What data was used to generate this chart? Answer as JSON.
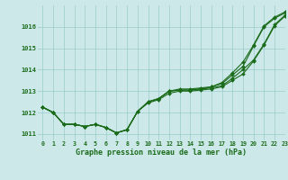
{
  "xlabel": "Graphe pression niveau de la mer (hPa)",
  "xlim": [
    -0.5,
    23
  ],
  "ylim": [
    1010.7,
    1017.0
  ],
  "yticks": [
    1011,
    1012,
    1013,
    1014,
    1015,
    1016
  ],
  "xticks": [
    0,
    1,
    2,
    3,
    4,
    5,
    6,
    7,
    8,
    9,
    10,
    11,
    12,
    13,
    14,
    15,
    16,
    17,
    18,
    19,
    20,
    21,
    22,
    23
  ],
  "bg_color": "#cce8e8",
  "line_color": "#1a6b1a",
  "grid_color": "#99cccc",
  "lines": [
    {
      "x": [
        0,
        1,
        2,
        3,
        4,
        5,
        6,
        7,
        8,
        9,
        10,
        11,
        12,
        13,
        14,
        15,
        16,
        17,
        18,
        19,
        20,
        21,
        22,
        23
      ],
      "y": [
        1012.25,
        1012.0,
        1011.45,
        1011.45,
        1011.35,
        1011.45,
        1011.3,
        1011.05,
        1011.2,
        1012.05,
        1012.45,
        1012.6,
        1012.9,
        1013.0,
        1013.0,
        1013.05,
        1013.1,
        1013.2,
        1013.5,
        1013.8,
        1014.4,
        1015.15,
        1016.05,
        1016.5
      ]
    },
    {
      "x": [
        0,
        1,
        2,
        3,
        4,
        5,
        6,
        7,
        8,
        9,
        10,
        11,
        12,
        13,
        14,
        15,
        16,
        17,
        18,
        19,
        20,
        21,
        22,
        23
      ],
      "y": [
        1012.25,
        1012.0,
        1011.45,
        1011.45,
        1011.35,
        1011.45,
        1011.3,
        1011.05,
        1011.2,
        1012.05,
        1012.5,
        1012.65,
        1013.0,
        1013.05,
        1013.05,
        1013.1,
        1013.15,
        1013.25,
        1013.6,
        1014.0,
        1014.45,
        1015.2,
        1016.1,
        1016.55
      ]
    },
    {
      "x": [
        0,
        1,
        2,
        3,
        4,
        5,
        6,
        7,
        8,
        9,
        10,
        11,
        12,
        13,
        14,
        15,
        16,
        17,
        18,
        19,
        20,
        21,
        22,
        23
      ],
      "y": [
        1012.25,
        1012.0,
        1011.45,
        1011.45,
        1011.35,
        1011.45,
        1011.3,
        1011.05,
        1011.2,
        1012.05,
        1012.5,
        1012.65,
        1013.0,
        1013.05,
        1013.05,
        1013.1,
        1013.2,
        1013.35,
        1013.75,
        1014.15,
        1015.1,
        1016.0,
        1016.4,
        1016.65
      ]
    },
    {
      "x": [
        0,
        1,
        2,
        3,
        4,
        5,
        6,
        7,
        8,
        9,
        10,
        11,
        12,
        13,
        14,
        15,
        16,
        17,
        18,
        19,
        20,
        21,
        22,
        23
      ],
      "y": [
        1012.25,
        1012.0,
        1011.45,
        1011.45,
        1011.35,
        1011.45,
        1011.3,
        1011.05,
        1011.2,
        1012.05,
        1012.5,
        1012.65,
        1013.0,
        1013.1,
        1013.1,
        1013.15,
        1013.2,
        1013.4,
        1013.85,
        1014.35,
        1015.15,
        1016.05,
        1016.45,
        1016.7
      ]
    }
  ]
}
